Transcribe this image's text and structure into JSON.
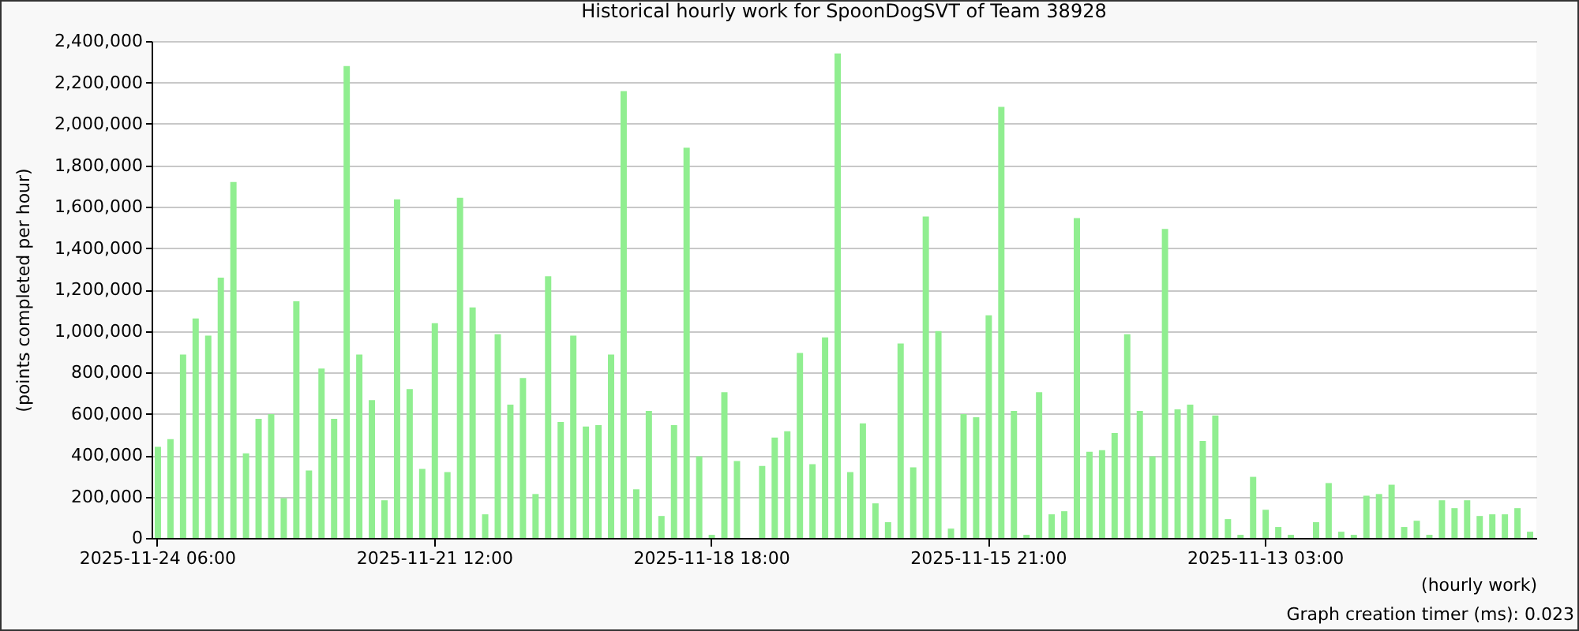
{
  "chart_data": {
    "type": "bar",
    "title": "Historical hourly work for SpoonDogSVT of Team 38928",
    "xlabel": "(hourly work)",
    "ylabel": "(points completed per hour)",
    "annotations": [
      "Graph creation timer (ms): 0.023"
    ],
    "categories": [
      "2025-11-24 06:00",
      null,
      null,
      null,
      null,
      null,
      null,
      null,
      null,
      null,
      null,
      null,
      null,
      null,
      null,
      null,
      null,
      null,
      null,
      null,
      null,
      null,
      "2025-11-21 12:00",
      null,
      null,
      null,
      null,
      null,
      null,
      null,
      null,
      null,
      null,
      null,
      null,
      null,
      null,
      null,
      null,
      null,
      null,
      null,
      null,
      null,
      "2025-11-18 18:00",
      null,
      null,
      null,
      null,
      null,
      null,
      null,
      null,
      null,
      null,
      null,
      null,
      null,
      null,
      null,
      null,
      null,
      null,
      null,
      null,
      null,
      "2025-11-15 21:00",
      null,
      null,
      null,
      null,
      null,
      null,
      null,
      null,
      null,
      null,
      null,
      null,
      null,
      null,
      null,
      null,
      null,
      null,
      null,
      null,
      null,
      "2025-11-13 03:00",
      null,
      null,
      null,
      null,
      null,
      null,
      null,
      null,
      null,
      null,
      null,
      null,
      null,
      null,
      null,
      null,
      null,
      null,
      null,
      null,
      null
    ],
    "values": [
      440000,
      477000,
      886000,
      1060000,
      977000,
      1257000,
      1719000,
      409000,
      575000,
      598000,
      192000,
      1143000,
      326000,
      818000,
      575000,
      2279000,
      886000,
      666000,
      182000,
      1635000,
      719000,
      333000,
      1037000,
      318000,
      1643000,
      1113000,
      114000,
      984000,
      644000,
      772000,
      212000,
      1264000,
      560000,
      977000,
      538000,
      545000,
      886000,
      2158000,
      235000,
      613000,
      106000,
      545000,
      1885000,
      394000,
      15000,
      704000,
      371000,
      0,
      348000,
      485000,
      515000,
      893000,
      356000,
      969000,
      2340000,
      318000,
      553000,
      167000,
      76000,
      939000,
      341000,
      1552000,
      999000,
      45000,
      598000,
      583000,
      1075000,
      2082000,
      613000,
      15000,
      704000,
      114000,
      129000,
      1545000,
      416000,
      424000,
      507000,
      984000,
      613000,
      394000,
      1492000,
      621000,
      644000,
      469000,
      591000,
      91000,
      15000,
      295000,
      136000,
      53000,
      15000,
      0,
      76000,
      265000,
      30000,
      15000,
      204000,
      212000,
      257000,
      53000,
      83000,
      15000,
      182000,
      144000,
      182000,
      106000,
      114000,
      114000,
      144000,
      30000
    ],
    "color": "#90ee90",
    "ylim": [
      0,
      2400000
    ],
    "yticks": [
      0,
      {
        "value": 200000,
        "label": "200,000"
      },
      {
        "value": 400000,
        "label": "400,000"
      },
      {
        "value": 600000,
        "label": "600,000"
      },
      {
        "value": 800000,
        "label": "800,000"
      },
      {
        "value": 1000000,
        "label": "1,000,000"
      },
      {
        "value": 1200000,
        "label": "1,200,000"
      },
      {
        "value": 1400000,
        "label": "1,400,000"
      },
      {
        "value": 1600000,
        "label": "1,600,000"
      },
      {
        "value": 1800000,
        "label": "1,800,000"
      },
      {
        "value": 2000000,
        "label": "2,000,000"
      },
      {
        "value": 2200000,
        "label": "2,200,000"
      },
      {
        "value": 2400000,
        "label": "2,400,000"
      }
    ],
    "grid": "y"
  }
}
